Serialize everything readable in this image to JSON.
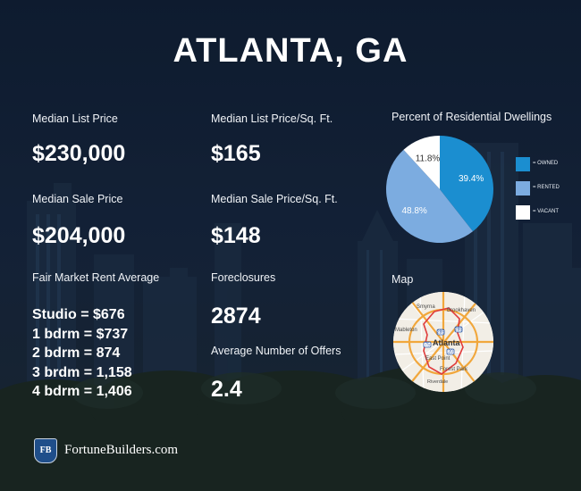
{
  "title": "ATLANTA, GA",
  "stats": {
    "median_list_price": {
      "label": "Median List Price",
      "value": "$230,000"
    },
    "median_list_price_sqft": {
      "label": "Median List Price/Sq. Ft.",
      "value": "$165"
    },
    "median_sale_price": {
      "label": "Median Sale Price",
      "value": "$204,000"
    },
    "median_sale_price_sqft": {
      "label": "Median Sale Price/Sq. Ft.",
      "value": "$148"
    },
    "foreclosures": {
      "label": "Foreclosures",
      "value": "2874"
    },
    "avg_offers": {
      "label": "Average Number of Offers",
      "value": "2.4"
    }
  },
  "rent": {
    "label": "Fair Market Rent Average",
    "lines": [
      "Studio = $676",
      "1 bdrm = $737",
      "2 bdrm = 874",
      "3 brdm = 1,158",
      "4 bdrm = 1,406"
    ]
  },
  "dwellings": {
    "label": "Percent of Residential Dwellings",
    "legend": [
      "= OWNED",
      "= RENTED",
      "= VACANT"
    ]
  },
  "map": {
    "label": "Map",
    "places": [
      "Smyrna",
      "Brookhaven",
      "Mableton",
      "Atlanta",
      "East Point",
      "Forest Park",
      "Riverdale"
    ],
    "routes": [
      "285",
      "75",
      "20",
      "85"
    ]
  },
  "footer": {
    "brand": "FortuneBuilders.com",
    "badge": "FB"
  },
  "colors": {
    "owned": "#1b8ed0",
    "rented": "#7cace0",
    "vacant": "#ffffff"
  },
  "chart_data": {
    "type": "pie",
    "title": "Percent of Residential Dwellings",
    "series": [
      {
        "name": "OWNED",
        "value": 39.4,
        "label": "39.4%",
        "color": "#1b8ed0"
      },
      {
        "name": "RENTED",
        "value": 48.8,
        "label": "48.8%",
        "color": "#7cace0"
      },
      {
        "name": "VACANT",
        "value": 11.8,
        "label": "11.8%",
        "color": "#ffffff"
      }
    ],
    "legend": "right"
  }
}
